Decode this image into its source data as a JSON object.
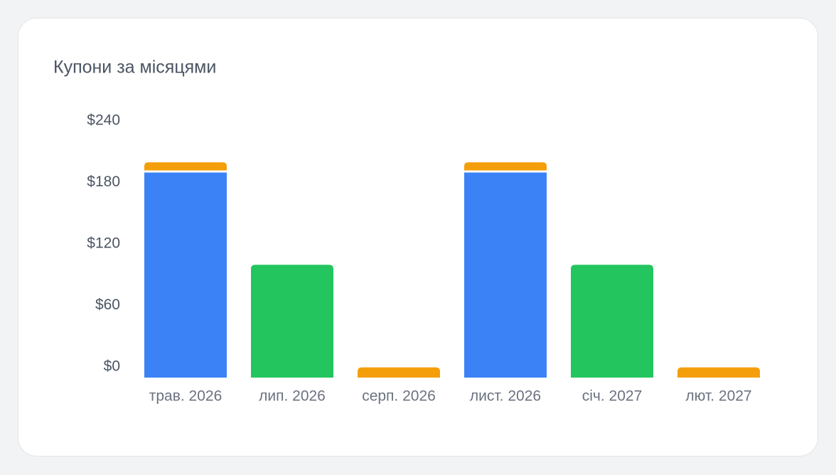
{
  "chart_data": {
    "type": "stacked-bar",
    "title": "Купони за місяцями",
    "categories": [
      "трав. 2026",
      "лип. 2026",
      "серп. 2026",
      "лист. 2026",
      "січ. 2027",
      "лют. 2027"
    ],
    "series": [
      {
        "color": "#3b82f6",
        "values": [
          200,
          null,
          null,
          200,
          null,
          null
        ]
      },
      {
        "color": "#22c55e",
        "values": [
          null,
          110,
          null,
          null,
          110,
          null
        ]
      },
      {
        "color": "#f59e0b",
        "values": [
          10,
          null,
          10,
          10,
          null,
          10
        ]
      }
    ],
    "ylim": [
      0,
      240
    ],
    "yticks": [
      {
        "value": 0,
        "label": "$0"
      },
      {
        "value": 60,
        "label": "$60"
      },
      {
        "value": 120,
        "label": "$120"
      },
      {
        "value": 180,
        "label": "$180"
      },
      {
        "value": 240,
        "label": "$240"
      }
    ],
    "grid": false
  }
}
